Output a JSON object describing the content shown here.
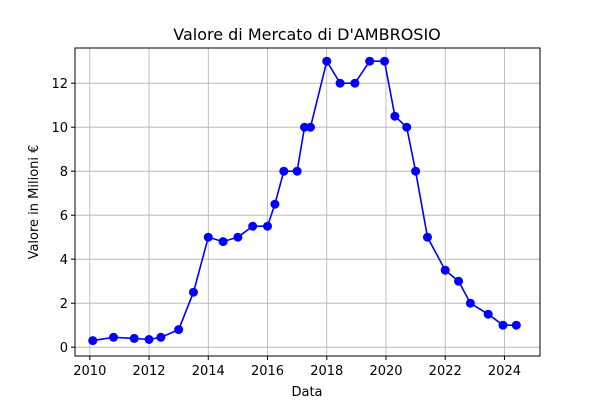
{
  "chart_data": {
    "type": "line",
    "title": "Valore di Mercato di D'AMBROSIO",
    "xlabel": "Data",
    "ylabel": "Valore in Milioni €",
    "xlim": [
      2009.5,
      2025.2
    ],
    "ylim": [
      -0.4,
      13.6
    ],
    "x_ticks": [
      2010,
      2012,
      2014,
      2016,
      2018,
      2020,
      2022,
      2024
    ],
    "y_ticks": [
      0,
      2,
      4,
      6,
      8,
      10,
      12
    ],
    "grid": true,
    "color": "#0000ff",
    "series": [
      {
        "x": [
          2010.1,
          2010.8,
          2011.5,
          2012.0,
          2012.4,
          2013.0,
          2013.5,
          2014.0,
          2014.5,
          2015.0,
          2015.5,
          2016.0,
          2016.25,
          2016.55,
          2017.0,
          2017.25,
          2017.45,
          2018.0,
          2018.45,
          2018.95,
          2019.45,
          2019.95,
          2020.3,
          2020.7,
          2021.0,
          2021.4,
          2022.0,
          2022.45,
          2022.85,
          2023.45,
          2023.95,
          2024.4
        ],
        "y": [
          0.3,
          0.45,
          0.4,
          0.35,
          0.45,
          0.8,
          2.5,
          5.0,
          4.8,
          5.0,
          5.5,
          5.5,
          6.5,
          8.0,
          8.0,
          10.0,
          10.0,
          13.0,
          12.0,
          12.0,
          13.0,
          13.0,
          10.5,
          10.0,
          8.0,
          5.0,
          3.5,
          3.0,
          2.0,
          1.5,
          1.0,
          1.0
        ]
      }
    ]
  }
}
